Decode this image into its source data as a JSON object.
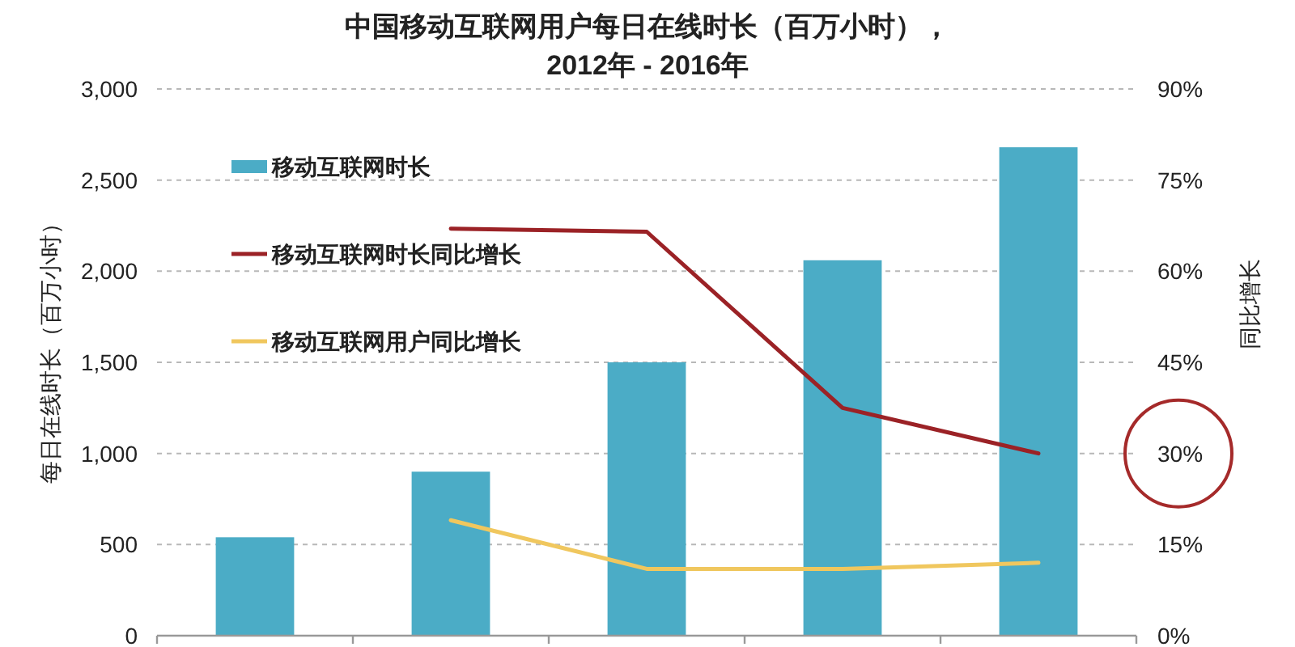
{
  "chart_data": {
    "type": "bar",
    "title": "中国移动互联网用户每日在线时长（百万小时），",
    "subtitle": "2012年 - 2016年",
    "ylabel": "每日在线时长（百万小时）",
    "y2label": "同比增长",
    "categories": [
      null,
      null,
      null,
      null,
      null
    ],
    "series": [
      {
        "name": "移动互联网时长",
        "color": "#4bacc6",
        "values": [
          540,
          900,
          1500,
          2060,
          2680
        ]
      },
      {
        "name": "移动互联网时长同比增长",
        "type": "line",
        "axis": "y2",
        "color": "#9b2226",
        "values": [
          null,
          67,
          66.5,
          37.5,
          30
        ]
      },
      {
        "name": "移动互联网用户同比增长",
        "type": "line",
        "axis": "y2",
        "color": "#f0c75e",
        "values": [
          null,
          19,
          11,
          11,
          12
        ]
      }
    ],
    "ylim": [
      0,
      3000
    ],
    "yticks": [
      0,
      500,
      {
        "value": 1000,
        "label": "1,000"
      },
      {
        "value": 1500,
        "label": "1,500"
      },
      {
        "value": 2000,
        "label": "2,000"
      },
      {
        "value": 2500,
        "label": "2,500"
      },
      {
        "value": 3000,
        "label": "3,000"
      }
    ],
    "y2lim": [
      0,
      90
    ],
    "y2ticks": [
      {
        "value": 0,
        "label": "0%"
      },
      {
        "value": 15,
        "label": "15%"
      },
      {
        "value": 30,
        "label": "30%"
      },
      {
        "value": 45,
        "label": "45%"
      },
      {
        "value": 60,
        "label": "60%"
      },
      {
        "value": 75,
        "label": "75%"
      },
      {
        "value": 90,
        "label": "90%"
      }
    ],
    "grid": "y",
    "legend": "top left",
    "tick_labels": "y",
    "marker": "none",
    "line_style": "solid"
  }
}
